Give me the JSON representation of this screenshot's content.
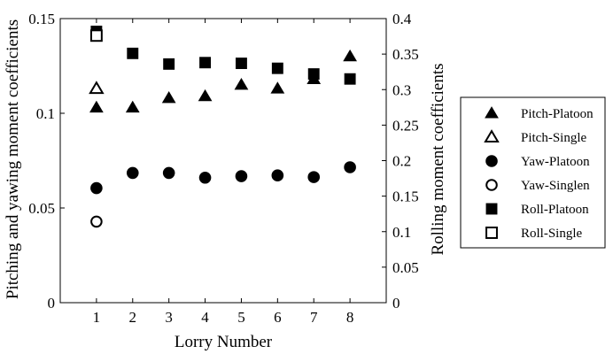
{
  "chart_data": {
    "type": "scatter",
    "xlabel": "Lorry Number",
    "ylabel": "Pitching and yawing moment coefficients",
    "y2label": "Rolling moment coefficients",
    "xlim": [
      0,
      9
    ],
    "ylim": [
      0,
      0.15
    ],
    "y2lim": [
      0,
      0.4
    ],
    "xticks": [
      "1",
      "2",
      "3",
      "4",
      "5",
      "6",
      "7",
      "8"
    ],
    "yticks": [
      "0",
      "0.05",
      "0.1",
      "0.15"
    ],
    "y2ticks": [
      "0",
      "0.05",
      "0.1",
      "0.15",
      "0.2",
      "0.25",
      "0.3",
      "0.35",
      "0.4"
    ],
    "grid": false,
    "legend_position": "right",
    "series": [
      {
        "name": "Pitch-Platoon",
        "marker": "triangle",
        "filled": true,
        "axis": "left",
        "x": [
          1,
          2,
          3,
          4,
          5,
          6,
          7,
          8
        ],
        "y": [
          0.103,
          0.103,
          0.108,
          0.109,
          0.115,
          0.113,
          0.118,
          0.13
        ]
      },
      {
        "name": "Pitch-Single",
        "marker": "triangle",
        "filled": false,
        "axis": "left",
        "x": [
          1
        ],
        "y": [
          0.113
        ]
      },
      {
        "name": "Yaw-Platoon",
        "marker": "circle",
        "filled": true,
        "axis": "left",
        "x": [
          1,
          2,
          3,
          4,
          5,
          6,
          7,
          8
        ],
        "y": [
          0.0605,
          0.0685,
          0.0685,
          0.066,
          0.0668,
          0.0672,
          0.0663,
          0.0715
        ]
      },
      {
        "name": "Yaw-Singlen",
        "marker": "circle",
        "filled": false,
        "axis": "left",
        "x": [
          1
        ],
        "y": [
          0.0428
        ]
      },
      {
        "name": "Roll-Platoon",
        "marker": "square",
        "filled": true,
        "axis": "right",
        "x": [
          1,
          2,
          3,
          4,
          5,
          6,
          7,
          8
        ],
        "y": [
          0.382,
          0.351,
          0.336,
          0.338,
          0.337,
          0.33,
          0.322,
          0.315
        ]
      },
      {
        "name": "Roll-Single",
        "marker": "square",
        "filled": false,
        "axis": "right",
        "x": [
          1
        ],
        "y": [
          0.376
        ]
      }
    ]
  }
}
